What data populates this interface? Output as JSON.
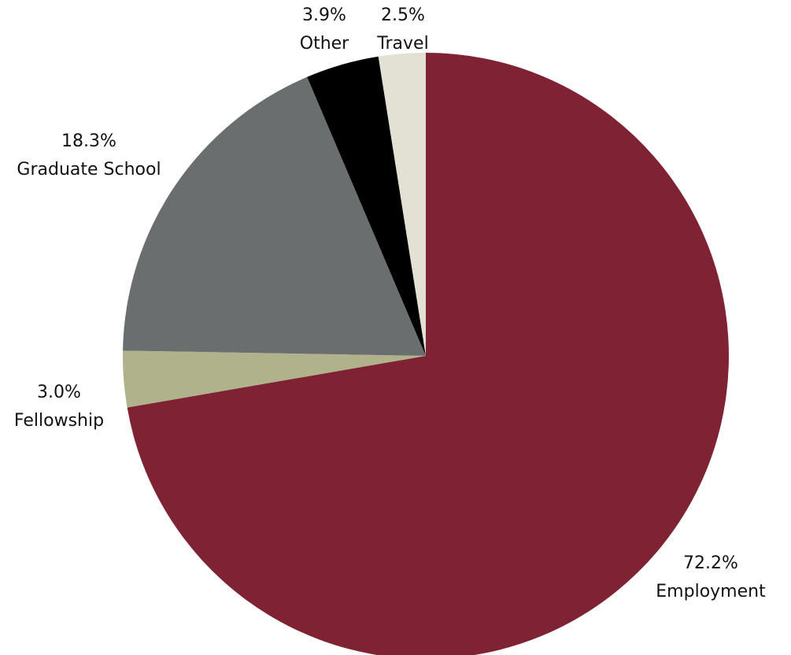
{
  "chart_data": {
    "type": "pie",
    "start_angle_deg": 0,
    "direction": "clockwise",
    "slices": [
      {
        "label": "Employment",
        "value": 72.2,
        "value_label": "72.2%",
        "color": "#7f2233"
      },
      {
        "label": "Fellowship",
        "value": 3.0,
        "value_label": "3.0%",
        "color": "#b0b28c"
      },
      {
        "label": "Graduate School",
        "value": 18.3,
        "value_label": "18.3%",
        "color": "#6a6e6e"
      },
      {
        "label": "Other",
        "value": 3.9,
        "value_label": "3.9%",
        "color": "#000000"
      },
      {
        "label": "Travel",
        "value": 2.5,
        "value_label": "2.5%",
        "color": "#e3e1d3"
      }
    ]
  }
}
